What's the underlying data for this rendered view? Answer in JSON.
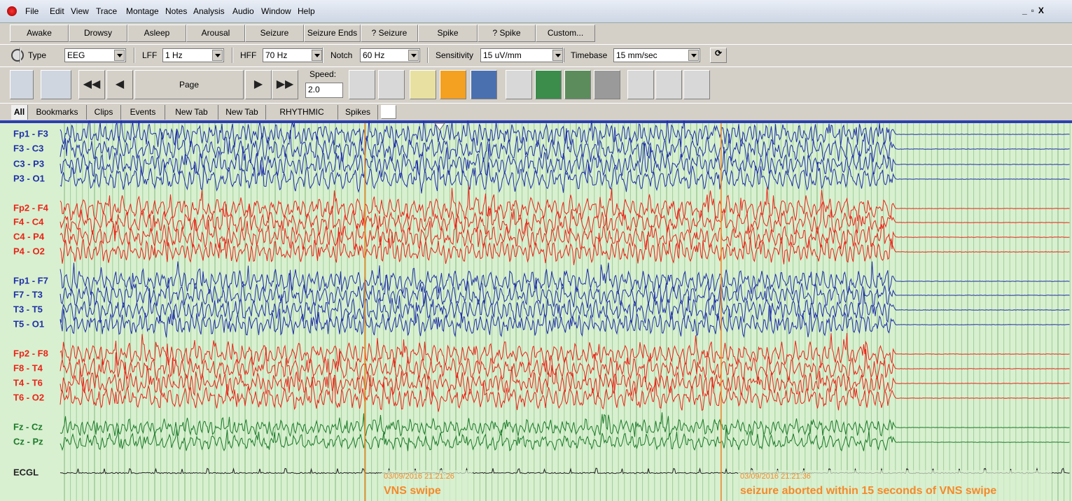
{
  "menu": [
    "File",
    "Edit",
    "View",
    "Trace",
    "Montage",
    "Notes",
    "Analysis",
    "Audio",
    "Window",
    "Help"
  ],
  "buttons": [
    "Awake",
    "Drowsy",
    "Asleep",
    "Arousal",
    "Seizure",
    "Seizure Ends",
    "? Seizure",
    "Spike",
    "? Spike",
    "Custom..."
  ],
  "settings": [
    {
      "label": "Type",
      "value": "EEG"
    },
    {
      "label": "LFF",
      "value": "1 Hz"
    },
    {
      "label": "HFF",
      "value": "70 Hz"
    },
    {
      "label": "Notch",
      "value": "60 Hz"
    },
    {
      "label": "Sensitivity",
      "value": "15 uV/mm"
    },
    {
      "label": "Timebase",
      "value": "15 mm/sec"
    }
  ],
  "toolbar": {
    "page": "Page",
    "speed_label": "Speed:",
    "speed": "2.0"
  },
  "tabs": [
    "All",
    "Bookmarks",
    "Clips",
    "Events",
    "New Tab",
    "New Tab",
    "RHYTHMIC",
    "Spikes"
  ],
  "channels": [
    {
      "label": "Fp1 - F3",
      "color": "#1f2fa8"
    },
    {
      "label": "F3 - C3",
      "color": "#1f2fa8"
    },
    {
      "label": "C3 - P3",
      "color": "#1f2fa8"
    },
    {
      "label": "P3 - O1",
      "color": "#1f2fa8"
    },
    {
      "label": "Fp2 - F4",
      "color": "#ea2418"
    },
    {
      "label": "F4 - C4",
      "color": "#ea2418"
    },
    {
      "label": "C4 - P4",
      "color": "#ea2418"
    },
    {
      "label": "P4 - O2",
      "color": "#ea2418"
    },
    {
      "label": "Fp1 - F7",
      "color": "#1f2fa8"
    },
    {
      "label": "F7 - T3",
      "color": "#1f2fa8"
    },
    {
      "label": "T3 - T5",
      "color": "#1f2fa8"
    },
    {
      "label": "T5 - O1",
      "color": "#1f2fa8"
    },
    {
      "label": "Fp2 - F8",
      "color": "#ea2418"
    },
    {
      "label": "F8 - T4",
      "color": "#ea2418"
    },
    {
      "label": "T4 - T6",
      "color": "#ea2418"
    },
    {
      "label": "T6 - O2",
      "color": "#ea2418"
    },
    {
      "label": "Fz - Cz",
      "color": "#1c7a2a"
    },
    {
      "label": "Cz - Pz",
      "color": "#1c7a2a"
    },
    {
      "label": "ECGL",
      "color": "#222222"
    }
  ],
  "annotations": [
    {
      "time": "03/09/2016 21:21:26",
      "text": "VNS swipe",
      "color": "#f5892a"
    },
    {
      "time": "03/09/2016 21:21:36",
      "text": "seizure aborted within 15 seconds of VNS swipe",
      "color": "#f5892a"
    }
  ]
}
